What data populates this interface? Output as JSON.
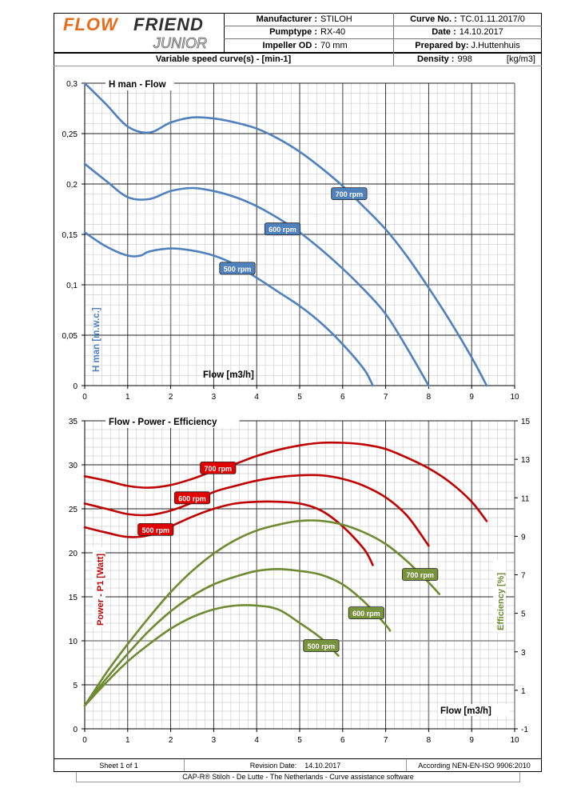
{
  "header": {
    "logo_main": "FLOWFRIEND",
    "logo_sub": "JUNIOR",
    "manufacturer_label": "Manufacturer :",
    "manufacturer_value": "STILOH",
    "pumptype_label": "Pumptype :",
    "pumptype_value": "RX-40",
    "impeller_label": "Impeller OD :",
    "impeller_value": "70 mm",
    "curve_no_label": "Curve No. :",
    "curve_no_value": "TC.01.11.2017/0",
    "date_label": "Date :",
    "date_value": "14.10.2017",
    "prepared_label": "Prepared by:",
    "prepared_value": "J.Huttenhuis",
    "variable_speed": "Variable speed curve(s) -  [min-1]",
    "density_label": "Density :",
    "density_value": "998",
    "density_unit": "[kg/m3]"
  },
  "colors": {
    "head_curve": "#4f81bd",
    "power_curve": "#c00000",
    "efficiency_curve": "#6e8b32",
    "label_red": "#e00000",
    "label_green": "#77933c",
    "label_blue": "#4f81bd"
  },
  "chart_data": [
    {
      "type": "line",
      "title": "H man - Flow",
      "xlabel": "Flow [m3/h]",
      "ylabel": "H man [m.w.c.]",
      "xlim": [
        0,
        10
      ],
      "ylim": [
        0,
        0.3
      ],
      "xticks": [
        "0",
        "1",
        "2",
        "3",
        "4",
        "5",
        "6",
        "7",
        "8",
        "9",
        "10"
      ],
      "yticks": [
        "0",
        "0,05",
        "0,1",
        "0,15",
        "0,2",
        "0,25",
        "0,3"
      ],
      "grid": true,
      "series": [
        {
          "name": "700 rpm",
          "x": [
            0,
            0.5,
            1,
            1.5,
            2,
            2.5,
            3,
            3.5,
            4,
            4.5,
            5,
            5.5,
            6,
            6.5,
            7,
            7.5,
            8,
            8.5,
            9,
            9.35
          ],
          "y": [
            0.3,
            0.279,
            0.257,
            0.251,
            0.261,
            0.266,
            0.265,
            0.261,
            0.255,
            0.245,
            0.232,
            0.216,
            0.198,
            0.177,
            0.155,
            0.128,
            0.097,
            0.064,
            0.028,
            0
          ]
        },
        {
          "name": "600 rpm",
          "x": [
            0,
            0.5,
            1,
            1.5,
            2,
            2.5,
            3,
            3.5,
            4,
            4.5,
            5,
            5.5,
            6,
            6.5,
            7,
            7.5,
            8
          ],
          "y": [
            0.22,
            0.203,
            0.187,
            0.185,
            0.193,
            0.196,
            0.193,
            0.187,
            0.178,
            0.166,
            0.152,
            0.135,
            0.116,
            0.095,
            0.071,
            0.037,
            0
          ]
        },
        {
          "name": "500 rpm",
          "x": [
            0,
            0.5,
            1,
            1.3,
            1.5,
            2,
            2.5,
            3,
            3.5,
            4,
            4.5,
            5,
            5.5,
            6,
            6.5,
            6.7
          ],
          "y": [
            0.152,
            0.138,
            0.129,
            0.129,
            0.133,
            0.136,
            0.134,
            0.129,
            0.12,
            0.107,
            0.093,
            0.079,
            0.062,
            0.041,
            0.016,
            0
          ]
        }
      ]
    },
    {
      "type": "line",
      "title": "Flow - Power - Efficiency",
      "xlabel": "Flow [m3/h]",
      "ylabel": "Power - P1 [Watt]",
      "y2label": "Efficiency  [%]",
      "xlim": [
        0,
        10
      ],
      "ylim": [
        0,
        35
      ],
      "y2lim": [
        -1,
        15
      ],
      "xticks": [
        "0",
        "1",
        "2",
        "3",
        "4",
        "5",
        "6",
        "7",
        "8",
        "9",
        "10"
      ],
      "yticks": [
        "0",
        "5",
        "10",
        "15",
        "20",
        "25",
        "30",
        "35"
      ],
      "y2ticks": [
        "-1",
        "1",
        "3",
        "5",
        "7",
        "9",
        "11",
        "13",
        "15"
      ],
      "grid": true,
      "series": [
        {
          "name": "700 rpm",
          "axis": "power",
          "x": [
            0,
            0.5,
            1,
            1.5,
            2,
            2.5,
            3,
            3.5,
            4,
            4.5,
            5,
            5.5,
            6,
            6.5,
            7,
            7.5,
            8,
            8.5,
            9,
            9.35
          ],
          "y": [
            28.7,
            28.2,
            27.6,
            27.4,
            27.7,
            28.4,
            29.3,
            30.1,
            31.0,
            31.7,
            32.2,
            32.5,
            32.5,
            32.3,
            31.8,
            30.8,
            29.6,
            28.0,
            25.8,
            23.6
          ]
        },
        {
          "name": "600 rpm",
          "axis": "power",
          "x": [
            0,
            0.5,
            1,
            1.5,
            2,
            2.5,
            3,
            3.5,
            4,
            4.5,
            5,
            5.5,
            6,
            6.5,
            7,
            7.5,
            8
          ],
          "y": [
            25.6,
            25.0,
            24.4,
            24.3,
            24.8,
            25.7,
            26.9,
            27.6,
            28.2,
            28.6,
            28.8,
            28.8,
            28.4,
            27.6,
            26.3,
            24.2,
            20.8
          ]
        },
        {
          "name": "500 rpm",
          "axis": "power",
          "x": [
            0,
            0.5,
            1,
            1.5,
            2,
            2.5,
            3,
            3.5,
            4,
            4.5,
            5,
            5.5,
            6,
            6.5,
            6.7
          ],
          "y": [
            22.9,
            22.3,
            21.8,
            22.0,
            23.0,
            24.1,
            25.0,
            25.6,
            25.8,
            25.8,
            25.6,
            24.8,
            23.0,
            20.4,
            18.6
          ]
        },
        {
          "name": "700 rpm",
          "axis": "efficiency",
          "x": [
            0,
            0.5,
            1,
            1.5,
            2,
            2.5,
            3,
            3.5,
            4,
            4.5,
            5,
            5.5,
            6,
            6.5,
            7,
            7.5,
            8,
            8.25
          ],
          "y": [
            0.2,
            1.9,
            3.4,
            4.8,
            6.1,
            7.2,
            8.1,
            8.8,
            9.3,
            9.6,
            9.8,
            9.8,
            9.6,
            9.2,
            8.6,
            7.7,
            6.6,
            6.0
          ]
        },
        {
          "name": "600 rpm",
          "axis": "efficiency",
          "x": [
            0,
            0.5,
            1,
            1.5,
            2,
            2.5,
            3,
            3.5,
            4,
            4.5,
            5,
            5.5,
            6,
            6.5,
            7,
            7.1
          ],
          "y": [
            0.2,
            1.6,
            2.9,
            4.1,
            5.1,
            5.9,
            6.5,
            6.9,
            7.2,
            7.3,
            7.2,
            7.0,
            6.5,
            5.6,
            4.4,
            4.1
          ]
        },
        {
          "name": "500 rpm",
          "axis": "efficiency",
          "x": [
            0,
            0.5,
            1,
            1.5,
            2,
            2.5,
            3,
            3.5,
            4,
            4.5,
            5,
            5.5,
            5.9
          ],
          "y": [
            0.2,
            1.4,
            2.5,
            3.4,
            4.2,
            4.8,
            5.2,
            5.4,
            5.4,
            5.2,
            4.5,
            3.7,
            2.8
          ]
        }
      ]
    }
  ],
  "footer": {
    "sheet": "Sheet 1 of 1",
    "revision_label": "Revision Date:",
    "revision_value": "14.10.2017",
    "standard": "According NEN-EN-ISO 9906:2010",
    "software": "CAP-R®  Stiloh - De Lutte - The Netherlands - Curve assistance software"
  }
}
